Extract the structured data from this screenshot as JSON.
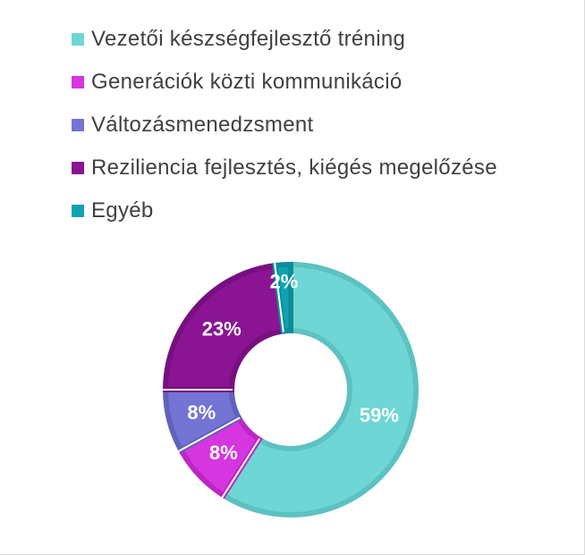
{
  "chart_data": {
    "type": "pie",
    "variant": "donut",
    "legend_position": "top-left",
    "categories": [
      "Vezetői készségfejlesztő tréning",
      "Generációk közti kommunikáció",
      "Változásmenedzsment",
      "Reziliencia fejlesztés, kiégés megelőzése",
      "Egyéb"
    ],
    "values": [
      59,
      8,
      8,
      23,
      2
    ],
    "data_labels": [
      "59%",
      "8%",
      "8%",
      "23%",
      "2%"
    ],
    "colors": [
      "#6fd6d6",
      "#d636e0",
      "#7474d4",
      "#8a1493",
      "#0fa3b1"
    ],
    "edge_colors": [
      "#5ec1c1",
      "#bd25c6",
      "#6262bd",
      "#77107f",
      "#0c8d9a"
    ]
  }
}
